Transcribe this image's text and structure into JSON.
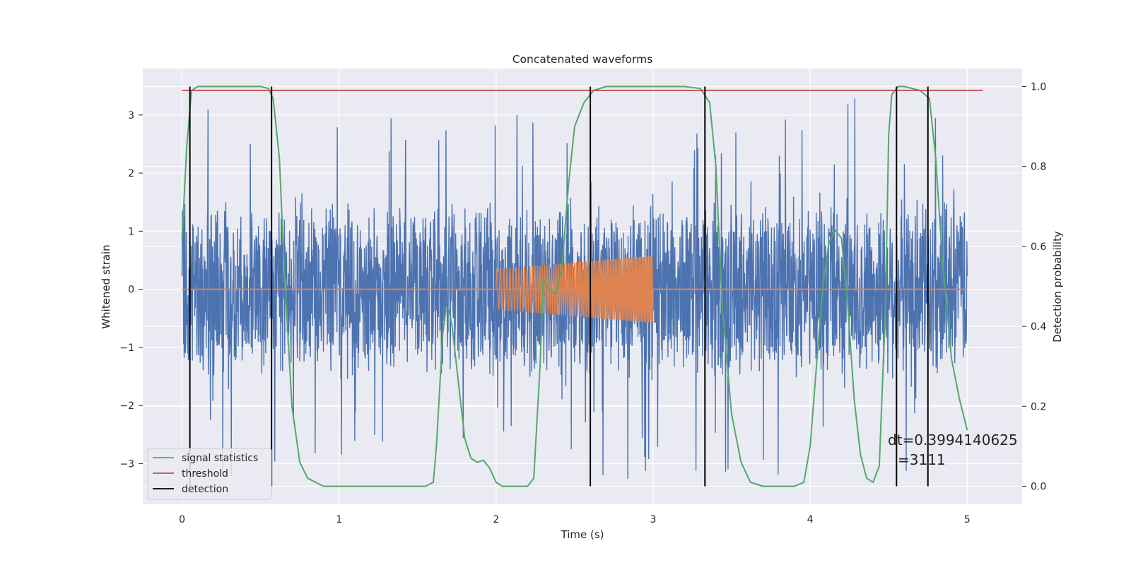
{
  "chart_data": {
    "type": "line",
    "title": "Concatenated waveforms",
    "xlabel": "Time (s)",
    "ylabel_left": "Whitened strain",
    "ylabel_right": "Detection probability",
    "xlim": [
      -0.25,
      5.35
    ],
    "ylim_left": [
      -3.7,
      3.8
    ],
    "ylim_right": [
      -0.045,
      1.045
    ],
    "xticks": [
      0,
      1,
      2,
      3,
      4,
      5
    ],
    "yticks_left": [
      -3,
      -2,
      -1,
      0,
      1,
      2,
      3
    ],
    "yticks_right": [
      0.0,
      0.2,
      0.4,
      0.6,
      0.8,
      1.0
    ],
    "xtick_labels": [
      "0",
      "1",
      "2",
      "3",
      "4",
      "5"
    ],
    "ytick_labels_left": [
      "−3",
      "−2",
      "−1",
      "0",
      "1",
      "2",
      "3"
    ],
    "ytick_labels_right": [
      "0.0",
      "0.2",
      "0.4",
      "0.6",
      "0.8",
      "1.0"
    ],
    "grid": true,
    "legend_position": "lower-left",
    "series": [
      {
        "name": "signal statistics",
        "axis": "right",
        "color": "#55a868",
        "x": [
          0,
          0.03,
          0.06,
          0.1,
          0.2,
          0.3,
          0.4,
          0.5,
          0.55,
          0.58,
          0.62,
          0.65,
          0.7,
          0.75,
          0.8,
          0.9,
          1.0,
          1.2,
          1.4,
          1.5,
          1.55,
          1.6,
          1.62,
          1.66,
          1.68,
          1.7,
          1.72,
          1.76,
          1.8,
          1.84,
          1.88,
          1.92,
          1.96,
          2.0,
          2.04,
          2.1,
          2.2,
          2.24,
          2.28,
          2.3,
          2.34,
          2.38,
          2.42,
          2.46,
          2.5,
          2.56,
          2.62,
          2.7,
          2.8,
          3.0,
          3.2,
          3.3,
          3.36,
          3.4,
          3.44,
          3.5,
          3.56,
          3.62,
          3.7,
          3.8,
          3.9,
          3.96,
          4.0,
          4.04,
          4.08,
          4.12,
          4.16,
          4.2,
          4.24,
          4.28,
          4.32,
          4.36,
          4.4,
          4.44,
          4.48,
          4.5,
          4.52,
          4.56,
          4.6,
          4.7,
          4.76,
          4.8,
          4.84,
          4.9,
          4.95,
          5.0
        ],
        "y": [
          0.62,
          0.85,
          0.99,
          1.0,
          1.0,
          1.0,
          1.0,
          1.0,
          0.995,
          0.97,
          0.82,
          0.55,
          0.2,
          0.06,
          0.02,
          0.0,
          0.0,
          0.0,
          0.0,
          0.0,
          0.0,
          0.01,
          0.1,
          0.38,
          0.44,
          0.44,
          0.4,
          0.26,
          0.12,
          0.07,
          0.06,
          0.065,
          0.045,
          0.01,
          0.0,
          0.0,
          0.0,
          0.02,
          0.3,
          0.52,
          0.49,
          0.48,
          0.55,
          0.75,
          0.9,
          0.96,
          0.99,
          1.0,
          1.0,
          1.0,
          1.0,
          0.995,
          0.96,
          0.8,
          0.45,
          0.18,
          0.06,
          0.01,
          0.0,
          0.0,
          0.0,
          0.01,
          0.1,
          0.3,
          0.5,
          0.61,
          0.64,
          0.62,
          0.45,
          0.22,
          0.08,
          0.02,
          0.01,
          0.05,
          0.45,
          0.88,
          0.98,
          1.0,
          1.0,
          0.99,
          0.97,
          0.82,
          0.58,
          0.32,
          0.22,
          0.14
        ]
      },
      {
        "name": "threshold",
        "axis": "right",
        "color": "#c44e52",
        "x": [
          0,
          5.1
        ],
        "y": [
          0.99,
          0.99
        ]
      },
      {
        "name": "detection",
        "axis": "right",
        "color": "#000000",
        "x": [
          0.05,
          0.57,
          2.6,
          3.33,
          4.55,
          4.75
        ],
        "y_range": [
          0.0,
          1.0
        ]
      }
    ],
    "strain": {
      "noise": {
        "color": "#4c72b0",
        "x_range": [
          0,
          5.0
        ],
        "amplitude_typical": 1.6,
        "amplitude_max": 3.4,
        "min": -3.45
      },
      "chirp": {
        "color": "#dd8452",
        "x_range": [
          2.0,
          3.0
        ],
        "amplitude_start": 0.35,
        "amplitude_end": 0.58,
        "baseline": 0.0
      }
    },
    "annotations": [
      "dt=0.3994140625",
      "=3111"
    ],
    "colors": {
      "background": "#eaeaf2",
      "grid": "#ffffff"
    }
  }
}
